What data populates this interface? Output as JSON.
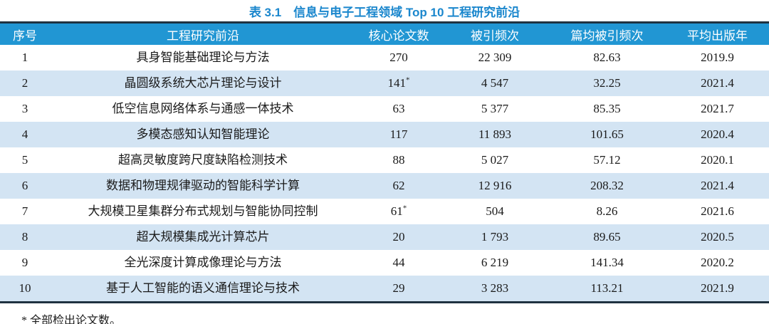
{
  "title": "表 3.1　信息与电子工程领域 Top 10 工程研究前沿",
  "footnote": "* 全部检出论文数。",
  "colors": {
    "header_bg": "#2196d3",
    "alt_row_bg": "#d3e4f3",
    "rule": "#1f3240",
    "title_text": "#1b87cd",
    "header_text": "#ffffff",
    "body_text": "#1a1a1a"
  },
  "table": {
    "columns": [
      "序号",
      "工程研究前沿",
      "核心论文数",
      "被引频次",
      "篇均被引频次",
      "平均出版年"
    ],
    "rows": [
      {
        "rank": "1",
        "front": "具身智能基础理论与方法",
        "core": "270",
        "core_mark": "",
        "citations": "22 309",
        "cpp": "82.63",
        "year": "2019.9"
      },
      {
        "rank": "2",
        "front": "晶圆级系统大芯片理论与设计",
        "core": "141",
        "core_mark": "*",
        "citations": "4 547",
        "cpp": "32.25",
        "year": "2021.4"
      },
      {
        "rank": "3",
        "front": "低空信息网络体系与通感一体技术",
        "core": "63",
        "core_mark": "",
        "citations": "5 377",
        "cpp": "85.35",
        "year": "2021.7"
      },
      {
        "rank": "4",
        "front": "多模态感知认知智能理论",
        "core": "117",
        "core_mark": "",
        "citations": "11 893",
        "cpp": "101.65",
        "year": "2020.4"
      },
      {
        "rank": "5",
        "front": "超高灵敏度跨尺度缺陷检测技术",
        "core": "88",
        "core_mark": "",
        "citations": "5 027",
        "cpp": "57.12",
        "year": "2020.1"
      },
      {
        "rank": "6",
        "front": "数据和物理规律驱动的智能科学计算",
        "core": "62",
        "core_mark": "",
        "citations": "12 916",
        "cpp": "208.32",
        "year": "2021.4"
      },
      {
        "rank": "7",
        "front": "大规模卫星集群分布式规划与智能协同控制",
        "core": "61",
        "core_mark": "*",
        "citations": "504",
        "cpp": "8.26",
        "year": "2021.6"
      },
      {
        "rank": "8",
        "front": "超大规模集成光计算芯片",
        "core": "20",
        "core_mark": "",
        "citations": "1 793",
        "cpp": "89.65",
        "year": "2020.5"
      },
      {
        "rank": "9",
        "front": "全光深度计算成像理论与方法",
        "core": "44",
        "core_mark": "",
        "citations": "6 219",
        "cpp": "141.34",
        "year": "2020.2"
      },
      {
        "rank": "10",
        "front": "基于人工智能的语义通信理论与技术",
        "core": "29",
        "core_mark": "",
        "citations": "3 283",
        "cpp": "113.21",
        "year": "2021.9"
      }
    ]
  }
}
